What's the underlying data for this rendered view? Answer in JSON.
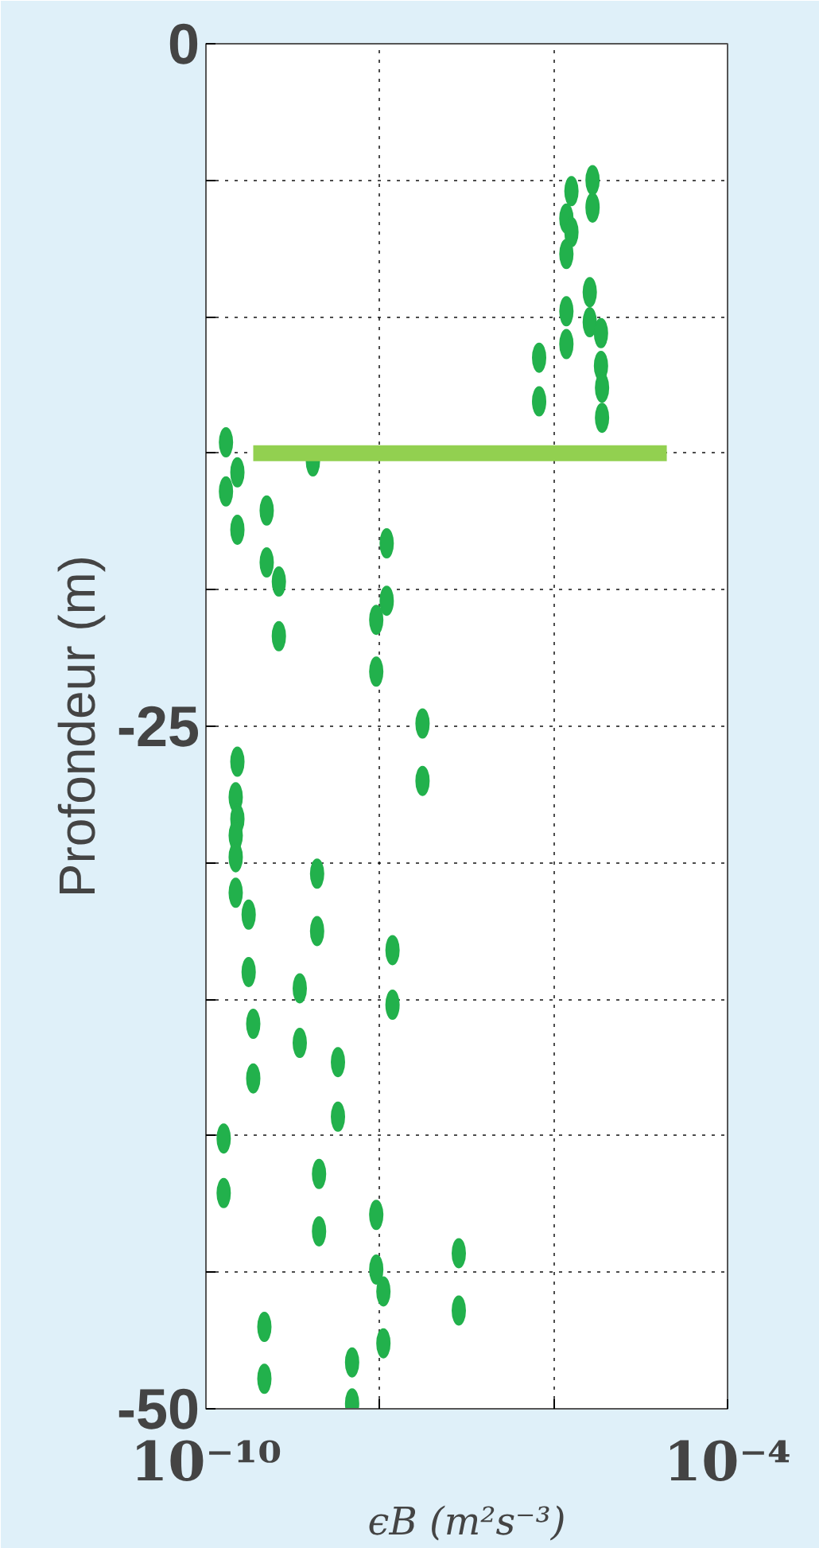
{
  "chart_data": {
    "type": "scatter",
    "xlabel": "ϵB (m²s⁻³)",
    "ylabel": "Profondeur (m)",
    "log": "x",
    "grid": true,
    "xlim": [
      1e-10,
      0.0001
    ],
    "xticks": [
      {
        "value": 1e-10,
        "label": "10⁻¹⁰"
      },
      {
        "value": 1e-08,
        "label": null
      },
      {
        "value": 1e-06,
        "label": null
      },
      {
        "value": 0.0001,
        "label": "10⁻⁴"
      }
    ],
    "ylim": [
      -50,
      0
    ],
    "yticks": [
      0,
      {
        "value": -5,
        "label": null
      },
      {
        "value": -10,
        "label": null
      },
      {
        "value": -15,
        "label": null
      },
      {
        "value": -20,
        "label": null
      },
      -25,
      {
        "value": -30,
        "label": null
      },
      {
        "value": -35,
        "label": null
      },
      {
        "value": -40,
        "label": null
      },
      {
        "value": -45,
        "label": null
      },
      -50
    ],
    "series": [
      {
        "color": "#22b14c",
        "x": [
          2.8e-06,
          1.6e-06,
          2.8e-06,
          1.4e-06,
          1.6e-06,
          1.4e-06,
          2.6e-06,
          1.4e-06,
          2.6e-06,
          3.5e-06,
          1.4e-06,
          6.8e-07,
          3.5e-06,
          3.6e-06,
          3.6e-06,
          6.8e-07,
          1.7e-10,
          2.3e-10,
          1.7e-09,
          1.7e-10,
          5e-10,
          2.3e-10,
          5e-10,
          6.9e-10,
          6.9e-10,
          1.2e-08,
          1.2e-08,
          9.1e-09,
          9.1e-09,
          3.1e-08,
          3.1e-08,
          2.3e-10,
          2.2e-10,
          2.3e-10,
          2.2e-10,
          2.2e-10,
          2.2e-10,
          3.1e-10,
          1.9e-09,
          1.9e-09,
          1.4e-08,
          3.1e-10,
          1.2e-09,
          1.4e-08,
          3.5e-10,
          1.2e-09,
          3.3e-09,
          3.5e-10,
          3.3e-09,
          1.6e-10,
          1.6e-10,
          2e-09,
          2e-09,
          9.1e-09,
          9.1e-09,
          1.1e-08,
          1.1e-08,
          8.1e-08,
          8.1e-08,
          4.7e-10,
          4.7e-10,
          4.8e-09,
          4.8e-09
        ],
        "values": [
          -5.0,
          -5.4,
          -6.0,
          -6.4,
          -6.9,
          -7.7,
          -9.1,
          -9.8,
          -10.2,
          -10.6,
          -11.0,
          -11.5,
          -11.8,
          -12.6,
          -13.7,
          -13.1,
          -14.6,
          -15.7,
          -15.3,
          -16.4,
          -17.1,
          -17.8,
          -19.0,
          -19.7,
          -21.7,
          -18.3,
          -20.4,
          -21.1,
          -23.0,
          -24.9,
          -27.0,
          -26.3,
          -27.6,
          -28.4,
          -29.0,
          -29.8,
          -31.1,
          -31.9,
          -30.4,
          -32.5,
          -33.2,
          -34.0,
          -34.6,
          -35.2,
          -35.9,
          -36.6,
          -37.3,
          -37.9,
          -39.3,
          -40.1,
          -42.1,
          -41.4,
          -43.5,
          -42.9,
          -44.9,
          -45.7,
          -47.6,
          -44.3,
          -46.4,
          -47.0,
          -48.9,
          -48.3,
          -49.8
        ]
      },
      {
        "type": "line",
        "color": "#92d050",
        "x": [
          3.5e-10,
          2e-05
        ],
        "values": [
          -15,
          -15
        ]
      }
    ]
  }
}
